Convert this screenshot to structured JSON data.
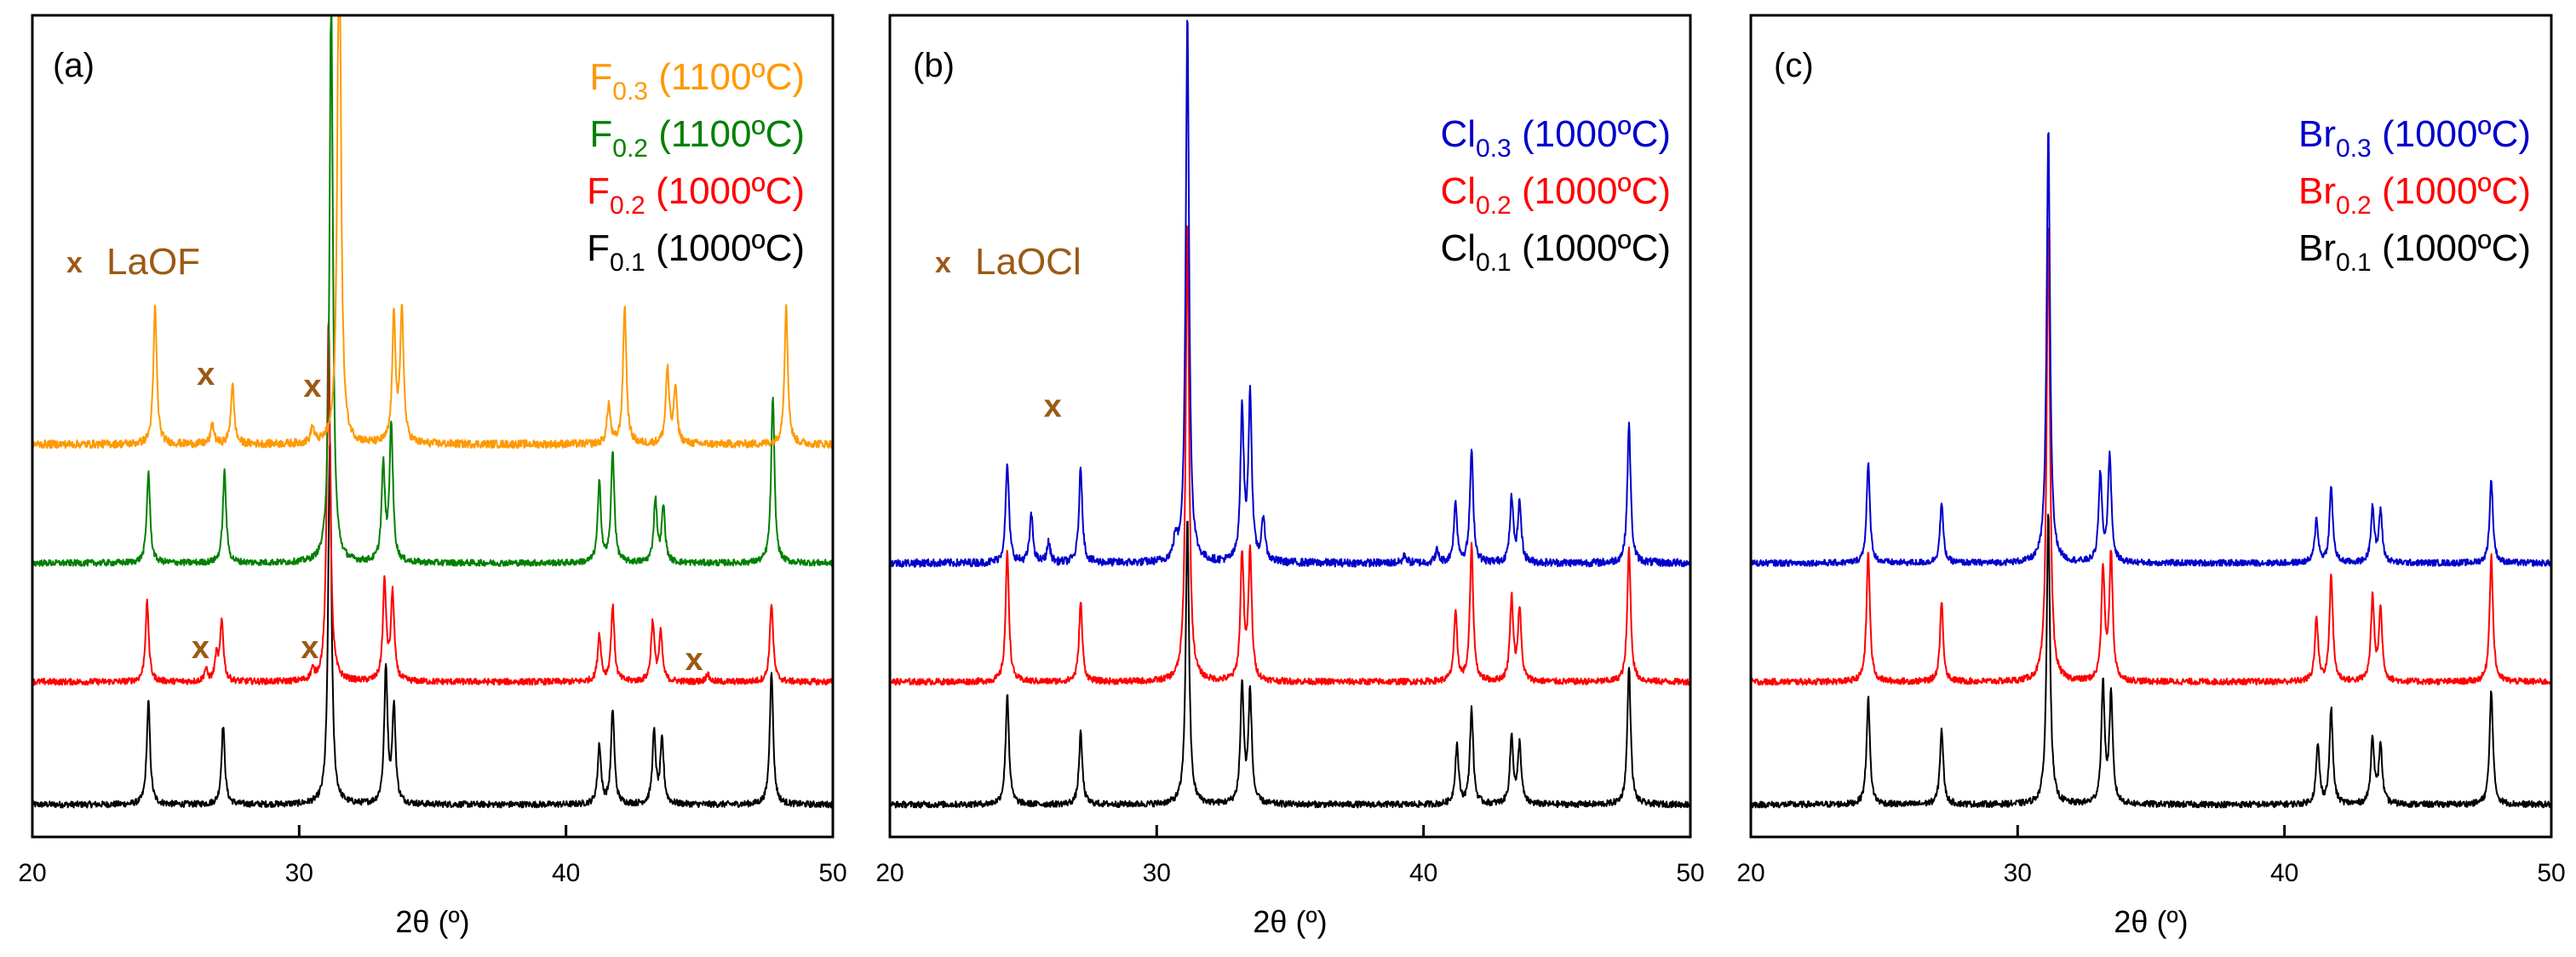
{
  "colors": {
    "black": "#000000",
    "red": "#ff0000",
    "green": "#008000",
    "orange": "#ff9900",
    "blue": "#0000cc",
    "brown": "#9b5a14"
  },
  "chart_data": [
    {
      "type": "line",
      "panel": "(a)",
      "xlabel": "2θ (º)",
      "ylabel": "",
      "xlim": [
        20,
        50
      ],
      "ylim": [
        0,
        7.6
      ],
      "xticks": [
        "20",
        "30",
        "40",
        "50"
      ],
      "yticks_shown": false,
      "legend_position": "top-right",
      "marker_label": "LaOF",
      "series": [
        {
          "name": "F0.1 (1000ºC)",
          "base": "F",
          "sub": "0.1",
          "suffix": " (1000ºC)",
          "color": "#000000",
          "offset": 0.0,
          "noise": 0.04,
          "peaks": [
            [
              24.35,
              1.3
            ],
            [
              27.15,
              1.0
            ],
            [
              31.15,
              4.6
            ],
            [
              33.25,
              1.7
            ],
            [
              33.55,
              1.2
            ],
            [
              41.25,
              0.75
            ],
            [
              41.75,
              1.2
            ],
            [
              43.3,
              0.9
            ],
            [
              43.6,
              0.8
            ],
            [
              47.7,
              1.7
            ]
          ]
        },
        {
          "name": "F0.2 (1000ºC)",
          "base": "F",
          "sub": "0.2",
          "suffix": " (1000ºC)",
          "color": "#ff0000",
          "offset": 1.55,
          "noise": 0.04,
          "peaks": [
            [
              24.3,
              1.0
            ],
            [
              26.5,
              0.15
            ],
            [
              26.9,
              0.3
            ],
            [
              27.1,
              0.75
            ],
            [
              30.5,
              0.12
            ],
            [
              31.1,
              4.6
            ],
            [
              33.2,
              1.25
            ],
            [
              33.5,
              1.1
            ],
            [
              41.25,
              0.6
            ],
            [
              41.75,
              0.95
            ],
            [
              43.25,
              0.75
            ],
            [
              43.55,
              0.6
            ],
            [
              45.3,
              0.1
            ],
            [
              47.7,
              1.0
            ]
          ]
        },
        {
          "name": "F0.2 (1100ºC)",
          "base": "F",
          "sub": "0.2",
          "suffix": " (1100ºC)",
          "color": "#008000",
          "offset": 3.05,
          "noise": 0.04,
          "peaks": [
            [
              24.35,
              1.15
            ],
            [
              27.2,
              1.15
            ],
            [
              31.2,
              7.2
            ],
            [
              33.15,
              1.2
            ],
            [
              33.45,
              1.75
            ],
            [
              41.25,
              1.0
            ],
            [
              41.75,
              1.4
            ],
            [
              43.35,
              0.8
            ],
            [
              43.65,
              0.7
            ],
            [
              47.75,
              2.1
            ]
          ]
        },
        {
          "name": "F0.3 (1100ºC)",
          "base": "F",
          "sub": "0.3",
          "suffix": " (1100ºC)",
          "color": "#ff9900",
          "offset": 4.55,
          "noise": 0.05,
          "peaks": [
            [
              24.6,
              1.75
            ],
            [
              26.75,
              0.25
            ],
            [
              27.5,
              0.75
            ],
            [
              30.5,
              0.2
            ],
            [
              31.5,
              7.2
            ],
            [
              33.55,
              1.6
            ],
            [
              33.85,
              1.7
            ],
            [
              41.6,
              0.5
            ],
            [
              42.2,
              1.75
            ],
            [
              43.8,
              0.95
            ],
            [
              44.1,
              0.7
            ],
            [
              48.25,
              1.75
            ]
          ]
        }
      ],
      "markers": [
        {
          "x": 26.5,
          "y": 5.3,
          "color": "#9b5a14"
        },
        {
          "x": 30.5,
          "y": 5.15,
          "color": "#9b5a14"
        },
        {
          "x": 26.3,
          "y": 1.85,
          "color": "#9b5a14"
        },
        {
          "x": 30.4,
          "y": 1.85,
          "color": "#9b5a14"
        },
        {
          "x": 44.8,
          "y": 1.7,
          "color": "#9b5a14"
        }
      ]
    },
    {
      "type": "line",
      "panel": "(b)",
      "xlabel": "2θ (º)",
      "ylabel": "",
      "xlim": [
        20,
        50
      ],
      "ylim": [
        0,
        7.6
      ],
      "xticks": [
        "20",
        "30",
        "40",
        "50"
      ],
      "yticks_shown": false,
      "legend_position": "top-right",
      "marker_label": "LaOCl",
      "series": [
        {
          "name": "Cl0.1 (1000ºC)",
          "base": "Cl",
          "sub": "0.1",
          "suffix": " (1000ºC)",
          "color": "#000000",
          "offset": 0.0,
          "noise": 0.04,
          "peaks": [
            [
              24.4,
              1.4
            ],
            [
              27.15,
              0.9
            ],
            [
              31.15,
              3.6
            ],
            [
              33.2,
              1.5
            ],
            [
              33.5,
              1.4
            ],
            [
              41.25,
              0.75
            ],
            [
              41.8,
              1.2
            ],
            [
              43.3,
              0.85
            ],
            [
              43.6,
              0.75
            ],
            [
              47.7,
              1.75
            ]
          ]
        },
        {
          "name": "Cl0.2 (1000ºC)",
          "base": "Cl",
          "sub": "0.2",
          "suffix": " (1000ºC)",
          "color": "#ff0000",
          "offset": 1.55,
          "noise": 0.04,
          "peaks": [
            [
              24.4,
              1.65
            ],
            [
              27.15,
              1.0
            ],
            [
              31.15,
              5.8
            ],
            [
              33.2,
              1.6
            ],
            [
              33.5,
              1.6
            ],
            [
              41.2,
              0.85
            ],
            [
              41.8,
              1.7
            ],
            [
              43.3,
              1.05
            ],
            [
              43.6,
              0.9
            ],
            [
              47.7,
              1.7
            ]
          ]
        },
        {
          "name": "Cl0.3 (1000ºC)",
          "base": "Cl",
          "sub": "0.3",
          "suffix": " (1000ºC)",
          "color": "#0000cc",
          "offset": 3.05,
          "noise": 0.05,
          "peaks": [
            [
              24.4,
              1.25
            ],
            [
              25.3,
              0.6
            ],
            [
              25.95,
              0.25
            ],
            [
              27.15,
              1.2
            ],
            [
              30.7,
              0.25
            ],
            [
              31.15,
              6.9
            ],
            [
              33.2,
              1.9
            ],
            [
              33.5,
              2.1
            ],
            [
              34.0,
              0.55
            ],
            [
              39.3,
              0.1
            ],
            [
              40.5,
              0.15
            ],
            [
              41.2,
              0.75
            ],
            [
              41.8,
              1.4
            ],
            [
              43.3,
              0.8
            ],
            [
              43.6,
              0.75
            ],
            [
              47.7,
              1.75
            ]
          ]
        }
      ],
      "markers": [
        {
          "x": 26.1,
          "y": 4.9,
          "color": "#9b5a14"
        }
      ]
    },
    {
      "type": "line",
      "panel": "(c)",
      "xlabel": "2θ (º)",
      "ylabel": "",
      "xlim": [
        20,
        50
      ],
      "ylim": [
        0,
        7.6
      ],
      "xticks": [
        "20",
        "30",
        "40",
        "50"
      ],
      "yticks_shown": false,
      "legend_position": "top-right",
      "marker_label": "",
      "series": [
        {
          "name": "Br0.1 (1000ºC)",
          "base": "Br",
          "sub": "0.1",
          "suffix": " (1000ºC)",
          "color": "#000000",
          "offset": 0.0,
          "noise": 0.04,
          "peaks": [
            [
              24.4,
              1.35
            ],
            [
              27.15,
              0.95
            ],
            [
              31.15,
              3.7
            ],
            [
              33.2,
              1.5
            ],
            [
              33.5,
              1.35
            ],
            [
              41.25,
              0.75
            ],
            [
              41.75,
              1.2
            ],
            [
              43.3,
              0.85
            ],
            [
              43.6,
              0.75
            ],
            [
              47.75,
              1.45
            ]
          ]
        },
        {
          "name": "Br0.2 (1000ºC)",
          "base": "Br",
          "sub": "0.2",
          "suffix": " (1000ºC)",
          "color": "#ff0000",
          "offset": 1.55,
          "noise": 0.04,
          "peaks": [
            [
              24.4,
              1.65
            ],
            [
              27.15,
              1.0
            ],
            [
              31.15,
              5.8
            ],
            [
              33.2,
              1.4
            ],
            [
              33.5,
              1.6
            ],
            [
              41.2,
              0.8
            ],
            [
              41.75,
              1.35
            ],
            [
              43.3,
              1.05
            ],
            [
              43.6,
              0.9
            ],
            [
              47.75,
              1.6
            ]
          ]
        },
        {
          "name": "Br0.3 (1000ºC)",
          "base": "Br",
          "sub": "0.3",
          "suffix": " (1000ºC)",
          "color": "#0000cc",
          "offset": 3.05,
          "noise": 0.04,
          "peaks": [
            [
              24.4,
              1.25
            ],
            [
              27.15,
              0.75
            ],
            [
              31.15,
              5.5
            ],
            [
              33.1,
              1.1
            ],
            [
              33.45,
              1.35
            ],
            [
              41.2,
              0.55
            ],
            [
              41.75,
              0.95
            ],
            [
              43.3,
              0.7
            ],
            [
              43.6,
              0.65
            ],
            [
              47.75,
              1.05
            ]
          ]
        }
      ],
      "markers": []
    }
  ]
}
